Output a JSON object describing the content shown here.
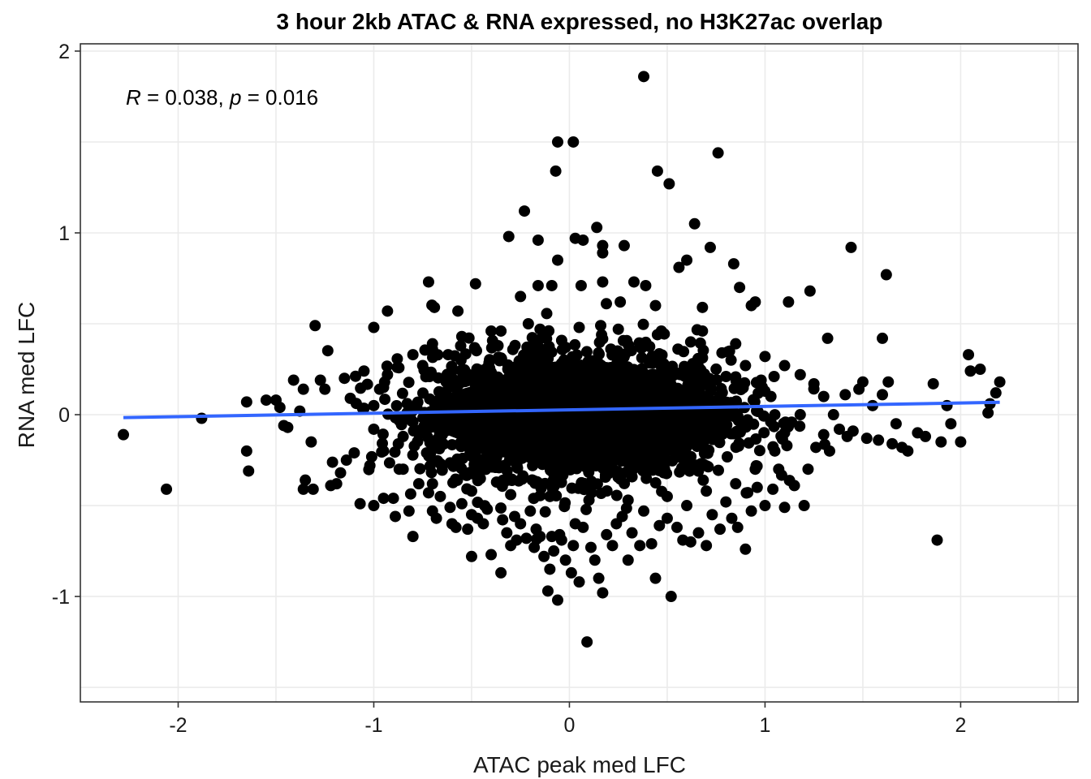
{
  "chart_data": {
    "type": "scatter",
    "title": "3 hour 2kb ATAC & RNA expressed, no H3K27ac overlap",
    "xlabel": "ATAC peak med LFC",
    "ylabel": "RNA med LFC",
    "xlim": [
      -2.5,
      2.6
    ],
    "ylim": [
      -1.58,
      2.04
    ],
    "xticks": [
      -2,
      -1,
      0,
      1,
      2
    ],
    "xtick_labels": [
      "-2",
      "-1",
      "0",
      "1",
      "2"
    ],
    "yticks": [
      -1,
      0,
      1,
      2
    ],
    "ytick_labels": [
      "-1",
      "0",
      "1",
      "2"
    ],
    "grid": true,
    "annotation": {
      "r_symbol": "R",
      "r_text": " = 0.038, ",
      "p_symbol": "p",
      "p_text": " = 0.016"
    },
    "trend_line": {
      "method": "linear",
      "color": "#3366FF",
      "x": [
        -2.28,
        2.2
      ],
      "y": [
        -0.016,
        0.068
      ]
    },
    "point_color": "#000000",
    "series": [
      {
        "points": [
          [
            0.38,
            1.86
          ],
          [
            -0.06,
            1.5
          ],
          [
            0.02,
            1.5
          ],
          [
            0.76,
            1.44
          ],
          [
            -0.07,
            1.34
          ],
          [
            0.45,
            1.34
          ],
          [
            0.51,
            1.27
          ],
          [
            -0.23,
            1.12
          ],
          [
            0.64,
            1.05
          ],
          [
            0.14,
            1.03
          ],
          [
            -0.31,
            0.98
          ],
          [
            -0.16,
            0.96
          ],
          [
            0.03,
            0.97
          ],
          [
            0.07,
            0.96
          ],
          [
            0.17,
            0.93
          ],
          [
            0.28,
            0.93
          ],
          [
            0.72,
            0.92
          ],
          [
            0.17,
            0.89
          ],
          [
            1.44,
            0.92
          ],
          [
            -0.06,
            0.85
          ],
          [
            0.6,
            0.85
          ],
          [
            0.84,
            0.83
          ],
          [
            1.62,
            0.77
          ],
          [
            -0.72,
            0.73
          ],
          [
            -0.48,
            0.72
          ],
          [
            -0.16,
            0.71
          ],
          [
            -0.09,
            0.71
          ],
          [
            0.06,
            0.71
          ],
          [
            0.17,
            0.73
          ],
          [
            0.33,
            0.73
          ],
          [
            0.39,
            0.71
          ],
          [
            0.56,
            0.81
          ],
          [
            0.87,
            0.7
          ],
          [
            1.23,
            0.68
          ],
          [
            -1.3,
            0.49
          ],
          [
            -1.0,
            0.48
          ],
          [
            -0.57,
            0.57
          ],
          [
            -0.25,
            0.65
          ],
          [
            0.26,
            0.62
          ],
          [
            0.68,
            0.59
          ],
          [
            0.95,
            0.62
          ],
          [
            1.12,
            0.62
          ],
          [
            1.32,
            0.42
          ],
          [
            -0.93,
            0.57
          ],
          [
            -0.69,
            0.59
          ],
          [
            0.44,
            0.6
          ],
          [
            0.93,
            0.6
          ],
          [
            1.6,
            0.42
          ],
          [
            -2.28,
            -0.11
          ],
          [
            -2.06,
            -0.41
          ],
          [
            -1.88,
            -0.02
          ],
          [
            -1.65,
            0.07
          ],
          [
            -1.65,
            -0.2
          ],
          [
            -1.64,
            -0.31
          ],
          [
            -1.55,
            0.08
          ],
          [
            -1.5,
            0.08
          ],
          [
            -1.48,
            0.04
          ],
          [
            -1.46,
            -0.06
          ],
          [
            -1.44,
            -0.07
          ],
          [
            -1.41,
            0.19
          ],
          [
            -1.36,
            0.14
          ],
          [
            -1.35,
            -0.36
          ],
          [
            -1.36,
            -0.41
          ],
          [
            -1.32,
            -0.15
          ],
          [
            -1.31,
            -0.41
          ],
          [
            -1.25,
            0.14
          ],
          [
            -1.22,
            -0.39
          ],
          [
            -1.19,
            -0.38
          ],
          [
            -1.17,
            -0.32
          ],
          [
            -1.15,
            0.2
          ],
          [
            -1.14,
            -0.25
          ],
          [
            -1.1,
            -0.21
          ],
          [
            -1.12,
            0.09
          ],
          [
            -1.07,
            -0.49
          ],
          [
            -1.05,
            0.24
          ],
          [
            -1.02,
            -0.28
          ],
          [
            -1.0,
            -0.5
          ],
          [
            -0.97,
            0.14
          ],
          [
            -0.95,
            -0.46
          ],
          [
            -0.93,
            0.22
          ],
          [
            -0.9,
            -0.46
          ],
          [
            -0.89,
            -0.56
          ],
          [
            -0.87,
            -0.3
          ],
          [
            -0.85,
            -0.12
          ],
          [
            -0.82,
            -0.53
          ],
          [
            -0.8,
            -0.67
          ],
          [
            -0.77,
            -0.38
          ],
          [
            -0.75,
            0.27
          ],
          [
            -0.73,
            -0.21
          ],
          [
            -0.7,
            0.36
          ],
          [
            -0.7,
            -0.53
          ],
          [
            -0.68,
            -0.57
          ],
          [
            -0.66,
            -0.45
          ],
          [
            -0.63,
            0.18
          ],
          [
            -0.61,
            -0.51
          ],
          [
            -0.6,
            -0.6
          ],
          [
            -0.58,
            -0.62
          ],
          [
            -0.55,
            -0.49
          ],
          [
            -0.52,
            -0.63
          ],
          [
            -0.5,
            -0.55
          ],
          [
            -0.5,
            -0.78
          ],
          [
            -0.47,
            -0.57
          ],
          [
            -0.44,
            -0.6
          ],
          [
            -0.42,
            -0.52
          ],
          [
            -0.4,
            -0.77
          ],
          [
            -0.35,
            -0.87
          ],
          [
            -0.32,
            -0.65
          ],
          [
            -0.3,
            -0.72
          ],
          [
            -0.28,
            -0.56
          ],
          [
            -0.27,
            -0.69
          ],
          [
            -0.25,
            -0.6
          ],
          [
            -0.22,
            -0.68
          ],
          [
            -0.2,
            -0.53
          ],
          [
            -0.18,
            -0.73
          ],
          [
            -0.17,
            -0.63
          ],
          [
            -0.15,
            -0.67
          ],
          [
            -0.13,
            -0.78
          ],
          [
            -0.11,
            -0.97
          ],
          [
            -0.1,
            -0.85
          ],
          [
            -0.09,
            -0.67
          ],
          [
            -0.08,
            -0.75
          ],
          [
            -0.06,
            -1.02
          ],
          [
            -0.05,
            -0.66
          ],
          [
            -0.04,
            -0.69
          ],
          [
            -0.02,
            -0.8
          ],
          [
            0.01,
            -0.87
          ],
          [
            0.02,
            -0.72
          ],
          [
            0.03,
            -0.6
          ],
          [
            0.05,
            -0.92
          ],
          [
            0.07,
            -0.62
          ],
          [
            0.09,
            -1.25
          ],
          [
            0.11,
            -0.73
          ],
          [
            0.13,
            -0.8
          ],
          [
            0.15,
            -0.9
          ],
          [
            0.17,
            -0.98
          ],
          [
            0.19,
            -0.66
          ],
          [
            0.22,
            -0.72
          ],
          [
            0.24,
            -0.6
          ],
          [
            0.27,
            -0.56
          ],
          [
            0.3,
            -0.8
          ],
          [
            0.32,
            -0.65
          ],
          [
            0.36,
            -0.72
          ],
          [
            0.38,
            -0.53
          ],
          [
            0.42,
            -0.71
          ],
          [
            0.44,
            -0.9
          ],
          [
            0.46,
            -0.61
          ],
          [
            0.5,
            -0.57
          ],
          [
            0.52,
            -1.0
          ],
          [
            0.55,
            -0.62
          ],
          [
            0.58,
            -0.69
          ],
          [
            0.6,
            -0.5
          ],
          [
            0.62,
            -0.7
          ],
          [
            0.66,
            -0.65
          ],
          [
            0.7,
            -0.72
          ],
          [
            0.73,
            -0.55
          ],
          [
            0.77,
            -0.63
          ],
          [
            0.8,
            -0.48
          ],
          [
            0.83,
            -0.57
          ],
          [
            0.86,
            -0.62
          ],
          [
            0.9,
            -0.74
          ],
          [
            0.93,
            -0.53
          ],
          [
            0.96,
            -0.4
          ],
          [
            1.0,
            -0.5
          ],
          [
            1.04,
            -0.41
          ],
          [
            1.07,
            -0.3
          ],
          [
            1.1,
            -0.51
          ],
          [
            1.15,
            -0.39
          ],
          [
            1.2,
            -0.5
          ],
          [
            1.22,
            -0.3
          ],
          [
            1.26,
            -0.18
          ],
          [
            1.3,
            -0.11
          ],
          [
            1.33,
            -0.2
          ],
          [
            1.35,
            0.0
          ],
          [
            1.38,
            -0.08
          ],
          [
            1.42,
            -0.12
          ],
          [
            1.45,
            -0.09
          ],
          [
            1.48,
            0.14
          ],
          [
            1.52,
            -0.13
          ],
          [
            1.55,
            0.05
          ],
          [
            1.58,
            -0.14
          ],
          [
            1.6,
            0.11
          ],
          [
            1.63,
            0.18
          ],
          [
            1.65,
            -0.16
          ],
          [
            1.67,
            -0.05
          ],
          [
            1.7,
            -0.18
          ],
          [
            1.73,
            -0.2
          ],
          [
            1.78,
            -0.1
          ],
          [
            1.82,
            -0.12
          ],
          [
            1.86,
            0.17
          ],
          [
            1.9,
            -0.15
          ],
          [
            1.95,
            -0.05
          ],
          [
            2.0,
            -0.15
          ],
          [
            2.05,
            0.24
          ],
          [
            2.1,
            0.25
          ],
          [
            2.14,
            0.01
          ],
          [
            2.18,
            0.12
          ],
          [
            2.2,
            0.18
          ],
          [
            2.15,
            0.06
          ],
          [
            1.88,
            -0.69
          ],
          [
            2.04,
            0.33
          ],
          [
            1.93,
            0.05
          ],
          [
            1.5,
            0.18
          ],
          [
            1.41,
            0.11
          ],
          [
            -0.72,
            -0.43
          ],
          [
            -0.78,
            0.04
          ],
          [
            -0.62,
            0.33
          ],
          [
            -0.4,
            0.46
          ],
          [
            -0.21,
            0.5
          ],
          [
            0.16,
            0.49
          ],
          [
            0.47,
            0.46
          ],
          [
            0.68,
            0.46
          ],
          [
            0.85,
            0.39
          ],
          [
            1.0,
            0.32
          ],
          [
            1.1,
            0.27
          ],
          [
            1.18,
            0.22
          ],
          [
            1.25,
            0.17
          ],
          [
            1.3,
            0.1
          ],
          [
            1.18,
            0.0
          ],
          [
            1.1,
            -0.1
          ],
          [
            1.05,
            -0.2
          ],
          [
            0.95,
            -0.3
          ],
          [
            0.85,
            -0.38
          ],
          [
            0.7,
            -0.42
          ],
          [
            0.5,
            -0.45
          ],
          [
            0.3,
            -0.47
          ],
          [
            0.1,
            -0.47
          ],
          [
            -0.1,
            -0.45
          ],
          [
            -0.3,
            -0.44
          ],
          [
            -0.5,
            -0.42
          ],
          [
            -0.7,
            -0.38
          ],
          [
            -0.85,
            -0.3
          ],
          [
            -0.95,
            -0.2
          ],
          [
            -1.0,
            -0.08
          ],
          [
            -1.0,
            0.05
          ],
          [
            -0.95,
            0.15
          ],
          [
            -0.88,
            0.26
          ],
          [
            -0.8,
            0.33
          ],
          [
            -0.7,
            0.39
          ],
          [
            -0.55,
            0.43
          ],
          [
            -0.35,
            0.46
          ],
          [
            -0.15,
            0.47
          ],
          [
            0.05,
            0.48
          ],
          [
            0.25,
            0.47
          ],
          [
            0.45,
            0.44
          ],
          [
            0.62,
            0.4
          ],
          [
            0.78,
            0.34
          ],
          [
            0.9,
            0.27
          ],
          [
            0.98,
            0.19
          ],
          [
            1.03,
            0.1
          ]
        ]
      }
    ]
  }
}
